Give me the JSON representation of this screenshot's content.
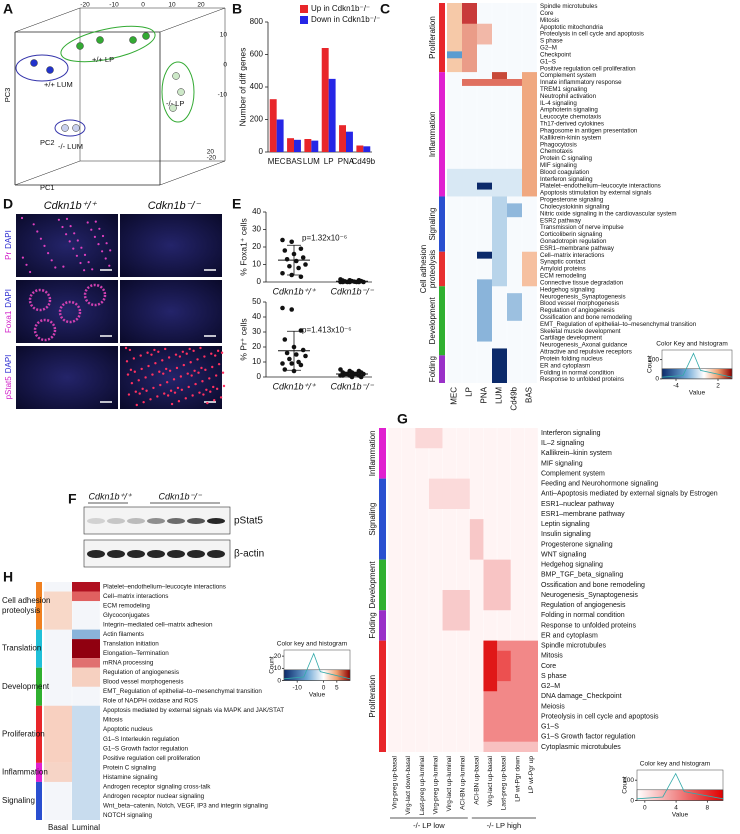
{
  "chart_data": [
    {
      "type": "bar",
      "y_label": "Number of diff genes",
      "categories": [
        "MEC",
        "BAS",
        "LUM",
        "LP",
        "PNA",
        "Cd49b"
      ],
      "series": [
        {
          "name": "Up in Cdkn1b⁻/⁻",
          "color": "#e8262a",
          "values": [
            325,
            85,
            80,
            640,
            165,
            40
          ]
        },
        {
          "name": "Down in Cdkn1b⁻/⁻",
          "color": "#2626e6",
          "values": [
            200,
            75,
            70,
            450,
            125,
            35
          ]
        }
      ],
      "ylim": [
        0,
        800
      ],
      "yticks": [
        0,
        200,
        400,
        600,
        800
      ],
      "legend": "upper right"
    },
    {
      "type": "scatter",
      "y_label": "% Foxa1⁺ cells",
      "annotation": "p=1.32x10⁻⁶",
      "categories": [
        "Cdkn1b⁺/⁺",
        "Cdkn1b⁻/⁻"
      ],
      "groups": [
        {
          "values": [
            24,
            23,
            19,
            18,
            16,
            14,
            13,
            12,
            10,
            9,
            8,
            5,
            4,
            3
          ],
          "mean": 12.5,
          "sd": 8.5,
          "color": "#111111"
        },
        {
          "values": [
            1.5,
            1,
            1,
            0.8,
            0.5,
            0.5,
            0.3,
            0.2,
            0,
            0,
            0,
            0,
            0,
            0,
            0
          ],
          "mean": 0.4,
          "sd": 0.5,
          "color": "#111111"
        }
      ],
      "ylim": [
        0,
        40
      ],
      "yticks": [
        0,
        10,
        20,
        30,
        40
      ]
    },
    {
      "type": "scatter",
      "y_label": "% Pr⁺ cells",
      "annotation": "p=1.413x10⁻⁶",
      "categories": [
        "Cdkn1b⁺/⁺",
        "Cdkn1b⁻/⁻"
      ],
      "groups": [
        {
          "values": [
            46,
            45,
            31,
            25,
            20,
            18,
            16,
            15,
            14,
            12,
            10,
            9,
            9,
            8,
            5,
            4
          ],
          "mean": 17.5,
          "sd": 13,
          "color": "#111111"
        },
        {
          "values": [
            5,
            4,
            4,
            3,
            3,
            3,
            2,
            2,
            2,
            2,
            2,
            1,
            1,
            1,
            1,
            0,
            0
          ],
          "mean": 2,
          "sd": 1.2,
          "color": "#111111"
        }
      ],
      "ylim": [
        0,
        50
      ],
      "yticks": [
        0,
        10,
        20,
        30,
        40,
        50
      ]
    }
  ],
  "figure": {
    "A": {
      "letter": "A",
      "axes": [
        "PC3",
        "PC2",
        "PC1"
      ],
      "groups": [
        "+/+ LP",
        "+/+ LUM",
        "-/- LP",
        "-/- LUM"
      ],
      "top_ticks": [
        -20,
        -10,
        0,
        10,
        20
      ],
      "side_ticks": [
        10,
        0,
        -10
      ],
      "corner_ticks": [
        20,
        -20
      ]
    },
    "B": {
      "letter": "B"
    },
    "C": {
      "letter": "C",
      "groups": [
        {
          "lines": [
            "Proliferation"
          ]
        },
        {
          "lines": [
            "Inflammation"
          ]
        },
        {
          "lines": [
            "Signaling"
          ]
        },
        {
          "lines": [
            "Cell adhesion",
            "proteolysis"
          ]
        },
        {
          "lines": [
            "Development"
          ]
        },
        {
          "lines": [
            "Folding"
          ]
        }
      ],
      "columns": [
        "MEC",
        "LP",
        "PNA",
        "LUM",
        "Cd49b",
        "BAS"
      ],
      "rows": [
        "Spindle microtubules",
        "Core",
        "Mitosis",
        "Apoptotic mitochondria",
        "Proteolysis in cell cycle and apoptosis",
        "S phase",
        "G2–M",
        "Checkpoint",
        "G1–S",
        "Positive regulation cell proliferation",
        "Complement system",
        "Innate inflammatory response",
        "TREM1 signaling",
        "Neutrophil activation",
        "IL-4 signaling",
        "Amphoterin signaling",
        "Leucocyte chemotaxis",
        "Th17-derived cytokines",
        "Phagosome in antigen presentation",
        "Kallikrein-kinin system",
        "Phagocytosis",
        "Chemotaxis",
        "Protein C signaling",
        "MIF signaling",
        "Blood coagulation",
        "Interferon signaling",
        "Platelet–endothelium–leucocyte interactions",
        "Apoptosis stimulation by external signals",
        "Progesterone signaling",
        "Cholecystokinin signaling",
        "Nitric oxide signaling in the cardiovascular system",
        "ESR2 pathway",
        "Transmission of nerve impulse",
        "Corticoliberin signaling",
        "Gonadotropin regulation",
        "ESR1–membrane pathway",
        "Cell–matrix interactions",
        "Synaptic contact",
        "Amyloid proteins",
        "ECM remodeling",
        "Connective tissue degradation",
        "Hedgehog signaling",
        "Neurogenesis_Synaptogenesis",
        "Blood  vessel morphogenesis",
        "Regulation of angiogenesis",
        "Ossification and bone remodeling",
        "EMT_Regulation of epithelial–to–mesenchymal transition",
        "Skeletal muscle development",
        "Cartilage development",
        "Neurogenesis_Axonal guidance",
        "Attractive and repulsive receptors",
        "Protein folding nucleus",
        "ER and cytoplasm",
        "Folding in normal condition",
        "Response to unfolded proteins"
      ],
      "key": {
        "title": "Color Key and histogram",
        "count_label": "Count",
        "value_label": "Value",
        "xlim": [
          -6,
          4
        ],
        "xticks": [
          -4,
          2
        ],
        "ylim": [
          0,
          150
        ],
        "yticks": [
          0,
          100
        ]
      }
    },
    "D": {
      "letter": "D",
      "columns": [
        "Cdkn1b⁺/⁺",
        "Cdkn1b⁻/⁻"
      ],
      "rows": [
        {
          "marker": "Pr",
          "stain": "DAPI"
        },
        {
          "marker": "Foxa1",
          "stain": "DAPI"
        },
        {
          "marker": "pStat5",
          "stain": "DAPI"
        }
      ]
    },
    "E": {
      "letter": "E"
    },
    "F": {
      "letter": "F",
      "columns": [
        "Cdkn1b⁺/⁺",
        "Cdkn1b⁻/⁻"
      ],
      "bands": [
        "pStat5",
        "β-actin"
      ]
    },
    "G": {
      "letter": "G",
      "groups": [
        {
          "lines": [
            "Inflammation"
          ]
        },
        {
          "lines": [
            "Signaling"
          ]
        },
        {
          "lines": [
            "Development"
          ]
        },
        {
          "lines": [
            "Folding"
          ]
        },
        {
          "lines": [
            "Proliferation"
          ]
        }
      ],
      "rows": [
        {
          "label": "Interferon signaling"
        },
        {
          "label": "IL–2 signaling"
        },
        {
          "label": "Kallikrein–kinin system"
        },
        {
          "label": "MIF signaling"
        },
        {
          "label": "Complement system"
        },
        {
          "label": "Feeding and Neurohormone signaling"
        },
        {
          "label": "Anti–Apoptosis mediated by external signals by Estrogen"
        },
        {
          "label": "ESR1–nuclear pathway",
          "color": "#2a3fc0"
        },
        {
          "label": "ESR1–membrane pathway"
        },
        {
          "label": "Leptin signaling"
        },
        {
          "label": "Insulin signaling"
        },
        {
          "label": "Progesterone signaling",
          "color": "#2a3fc0"
        },
        {
          "label": "WNT signaling",
          "color": "#2a3fc0"
        },
        {
          "label": "Hedgehog signaling"
        },
        {
          "label": "BMP_TGF_beta_signaling"
        },
        {
          "label": "Ossification and bone remodeling"
        },
        {
          "label": "Neurogenesis_Synaptogenesis"
        },
        {
          "label": "Regulation of angiogenesis"
        },
        {
          "label": "Folding in normal condition"
        },
        {
          "label": "Response to unfolded proteins"
        },
        {
          "label": "ER and cytoplasm"
        },
        {
          "label": "Spindle microtubules"
        },
        {
          "label": "Mitosis"
        },
        {
          "label": "Core"
        },
        {
          "label": "S phase"
        },
        {
          "label": "G2–M"
        },
        {
          "label": "DNA damage_Checkpoint"
        },
        {
          "label": "Meiosis"
        },
        {
          "label": "Proteolysis in cell cycle and apoptosis"
        },
        {
          "label": "G1–S"
        },
        {
          "label": "G1–S Growth factor regulation"
        },
        {
          "label": "Cytoplasmic microtubules"
        }
      ],
      "columns": [
        "Virg-preg up-basal",
        "Virg-lact down-basal",
        "Last-preg up-luminal",
        "Virg-preg up-luminal",
        "Virg-lact up-luminal",
        "ACI-BN up-luminal",
        "ACI-BN up-basal",
        "Virg-lact up-basal",
        "Last-preg up-basal",
        "LP wt-Pgr down",
        "LP wt-Pgr up"
      ],
      "column_groups": [
        "-/- LP low",
        "-/- LP high"
      ],
      "key": {
        "title": "Color key and histogram",
        "count_label": "Count",
        "value_label": "Value",
        "xlim": [
          -1,
          10
        ],
        "xticks": [
          0,
          4,
          8
        ],
        "ylim": [
          0,
          150
        ],
        "yticks": [
          0,
          100
        ]
      }
    },
    "H": {
      "letter": "H",
      "groups": [
        {
          "lines": [
            "Cell adhesion",
            "proteolysis"
          ]
        },
        {
          "lines": [
            "Translation"
          ]
        },
        {
          "lines": [
            "Development"
          ]
        },
        {
          "lines": [
            "Proliferation"
          ]
        },
        {
          "lines": [
            "Inflammation"
          ]
        },
        {
          "lines": [
            "Signaling"
          ]
        }
      ],
      "rows": [
        "Platelet–endothelium–leucocyte interactions",
        "Cell–matrix interactions",
        "ECM remodeling",
        "Glycoconjugates",
        "Integrin–mediated cell–matrix adhesion",
        "Actin filaments",
        "Translation initiation",
        "Elongation–Termination",
        "mRNA processing",
        "Regulation of angiogenesis",
        "Blood  vessel morphogenesis",
        "EMT_Regulation of epithelial–to–mesenchymal transition",
        "Role of NADPH oxidase and ROS",
        "Apoptosis mediated by external signals via MAPK and JAK/STAT",
        "Mitosis",
        "Apoptotic nucleus",
        "G1–S Interleukin regulation",
        "G1–S Growth factor regulation",
        "Positive regulation cell proliferation",
        "Protein C signaling",
        "Histamine signaling",
        "Androgen receptor signaling cross-talk",
        "Androgen receptor nuclear signaling",
        "Wnt_beta–catenin, Notch, VEGF, IP3 and integrin signaling",
        "NOTCH signaling"
      ],
      "columns": [
        "Basal",
        "Luminal"
      ],
      "key": {
        "title": "Color key and histogram",
        "count_label": "Count",
        "value_label": "Value",
        "xlim": [
          -15,
          10
        ],
        "xticks": [
          -10,
          0,
          5
        ],
        "ylim": [
          0,
          25
        ],
        "yticks": [
          0,
          10,
          20
        ]
      }
    }
  }
}
